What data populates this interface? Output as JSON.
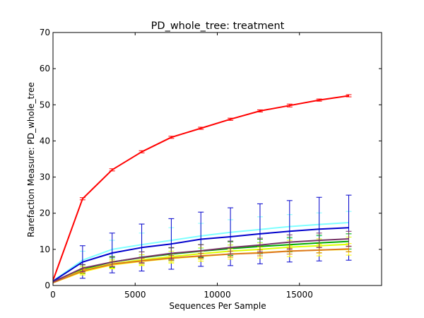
{
  "chart_data": {
    "type": "line",
    "title": "PD_whole_tree: treatment",
    "xlabel": "Sequences Per Sample",
    "ylabel": "Rarefaction Measure: PD_whole_tree",
    "xlim": [
      0,
      20000
    ],
    "ylim": [
      0,
      70
    ],
    "x_ticks": [
      0,
      5000,
      10000,
      15000
    ],
    "x_tick_labels": [
      "0",
      "5000",
      "10000",
      "15000"
    ],
    "y_ticks": [
      0,
      10,
      20,
      30,
      40,
      50,
      60,
      70
    ],
    "y_tick_labels": [
      "0",
      "10",
      "20",
      "30",
      "40",
      "50",
      "60",
      "70"
    ],
    "grid": false,
    "x": [
      10,
      1800,
      3600,
      5400,
      7200,
      9000,
      10800,
      12600,
      14400,
      16200,
      18000
    ],
    "series": [
      {
        "color": "#ff0000",
        "values": [
          1.5,
          24,
          32,
          37,
          41,
          43.5,
          46,
          48.3,
          49.8,
          51.3,
          52.5
        ],
        "errors": [
          0,
          0.3,
          0.3,
          0.3,
          0.3,
          0.3,
          0.3,
          0.3,
          0.4,
          0.3,
          0.3
        ]
      },
      {
        "color": "#7fffff",
        "values": [
          1.3,
          7,
          10,
          11.3,
          12.5,
          13.7,
          14.7,
          15.5,
          16.3,
          16.9,
          17.4
        ],
        "errors": [
          0,
          2.5,
          2.5,
          3.2,
          3.5,
          3.5,
          3.5,
          3.5,
          3.3,
          3.2,
          3.1
        ]
      },
      {
        "color": "#0000cc",
        "values": [
          1.2,
          6.5,
          9,
          10.5,
          11.5,
          12.8,
          13.5,
          14.3,
          15,
          15.6,
          16
        ],
        "errors": [
          0,
          4.5,
          5.5,
          6.5,
          7,
          7.5,
          8,
          8.3,
          8.5,
          8.8,
          9
        ]
      },
      {
        "color": "#00aa00",
        "values": [
          1,
          4.5,
          6.5,
          7.7,
          8.7,
          9.5,
          10.2,
          10.8,
          11.3,
          11.8,
          12.2
        ],
        "errors": [
          0,
          1.2,
          1.5,
          1.6,
          1.7,
          1.8,
          1.9,
          2,
          2,
          2.1,
          2.1
        ]
      },
      {
        "color": "#ddff00",
        "values": [
          0.9,
          4.2,
          6,
          7.1,
          8,
          8.8,
          9.5,
          10,
          10.6,
          11,
          11.4
        ],
        "errors": [
          0,
          1,
          1.2,
          1.4,
          1.5,
          1.6,
          1.7,
          1.8,
          1.9,
          1.9,
          2
        ]
      },
      {
        "color": "#ffff00",
        "values": [
          0.8,
          3.8,
          5.7,
          6.7,
          7.5,
          8.1,
          8.7,
          9.1,
          9.5,
          9.8,
          10
        ],
        "errors": [
          0,
          0.9,
          1.1,
          1.2,
          1.3,
          1.4,
          1.4,
          1.5,
          1.5,
          1.6,
          1.6
        ]
      },
      {
        "color": "#dd7722",
        "values": [
          0.8,
          4,
          5.9,
          6.8,
          7.6,
          8.2,
          8.7,
          9,
          9.5,
          9.8,
          10.1
        ],
        "errors": [
          0,
          0.5,
          0.6,
          0.7,
          0.7,
          0.7,
          0.8,
          0.8,
          0.8,
          0.8,
          0.8
        ]
      },
      {
        "color": "#773366",
        "values": [
          1,
          4.8,
          6.5,
          7.8,
          8.9,
          9.6,
          10.5,
          11.2,
          12,
          12.5,
          12.9
        ],
        "errors": [
          0,
          1,
          1.3,
          1.5,
          1.6,
          1.7,
          1.8,
          1.9,
          2,
          2,
          2.1
        ]
      }
    ]
  }
}
